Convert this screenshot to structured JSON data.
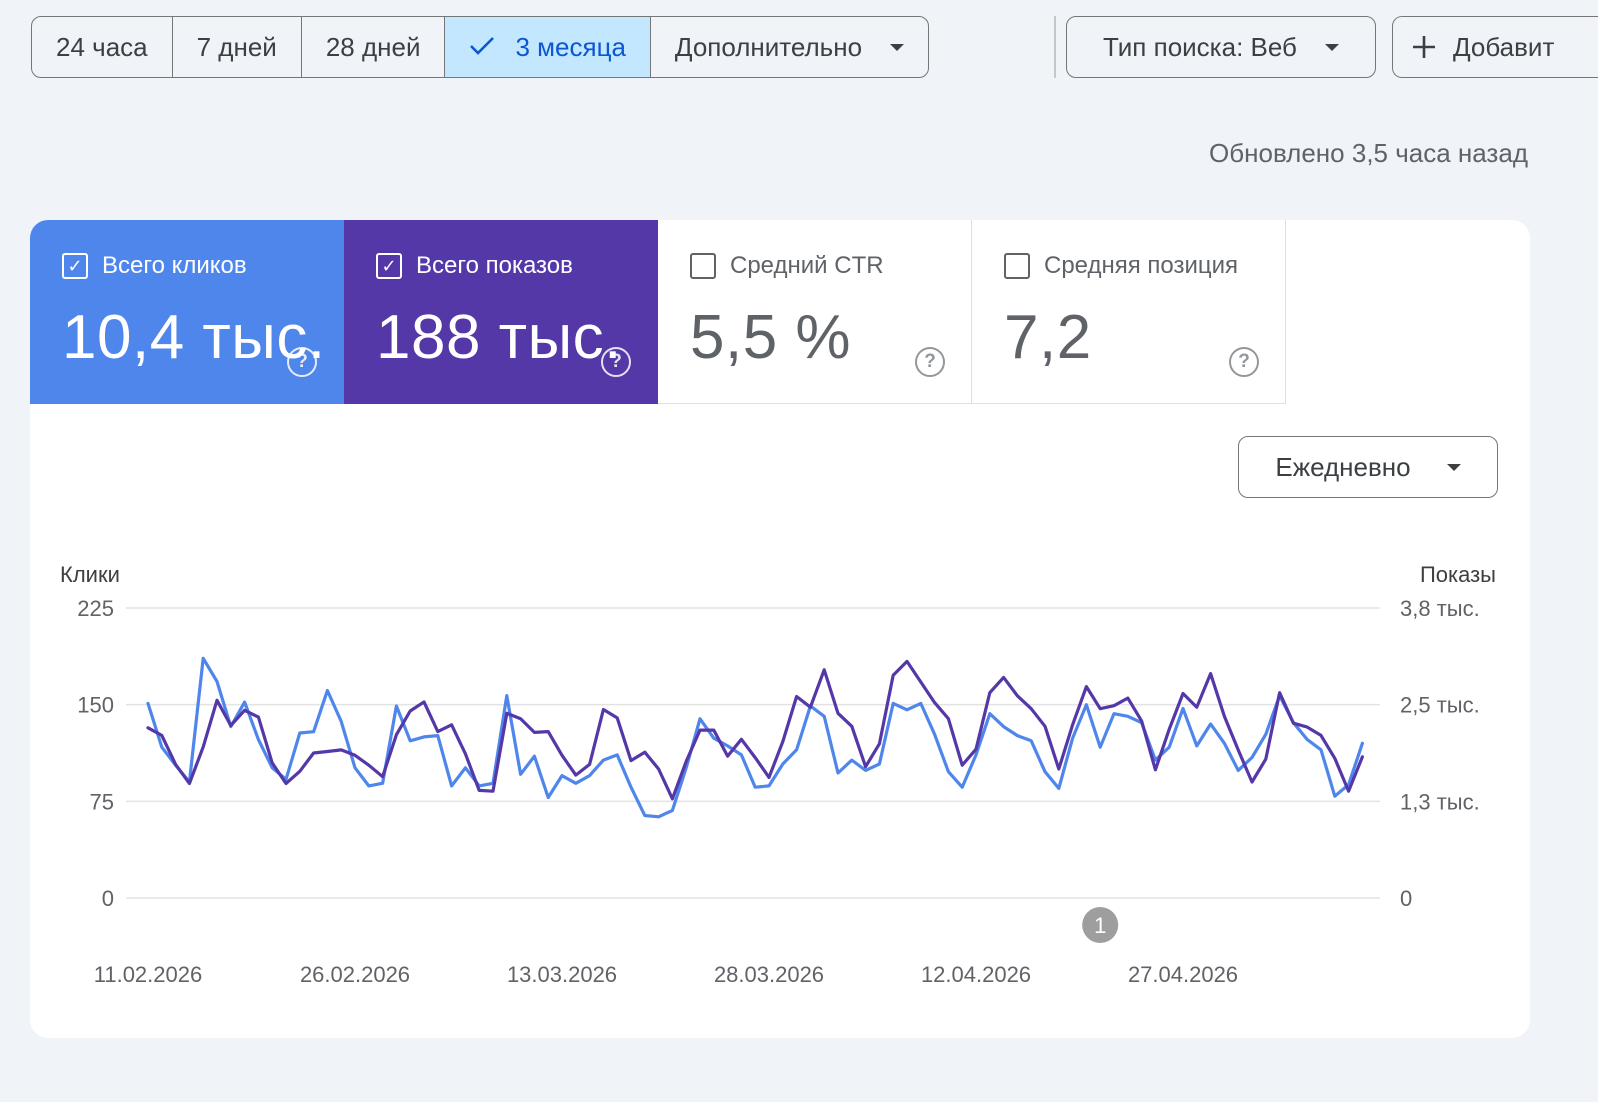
{
  "toolbar": {
    "ranges": [
      {
        "label": "24 часа",
        "selected": false
      },
      {
        "label": "7 дней",
        "selected": false
      },
      {
        "label": "28 дней",
        "selected": false
      },
      {
        "label": "3 месяца",
        "selected": true
      },
      {
        "label": "Дополнительно",
        "selected": false,
        "has_dropdown": true
      }
    ],
    "search_type_label": "Тип поиска: Веб",
    "add_filter_label": "Добавит"
  },
  "updated_text": "Обновлено 3,5 часа назад",
  "metrics": {
    "clicks": {
      "label": "Всего кликов",
      "value": "10,4 тыс.",
      "checked": true,
      "color": "#4f86ec"
    },
    "impressions": {
      "label": "Всего показов",
      "value": "188 тыс.",
      "checked": true,
      "color": "#5538a8"
    },
    "ctr": {
      "label": "Средний CTR",
      "value": "5,5 %",
      "checked": false
    },
    "position": {
      "label": "Средняя позиция",
      "value": "7,2",
      "checked": false
    }
  },
  "period_dropdown": {
    "label": "Ежедневно"
  },
  "chart_data": {
    "type": "line",
    "left_axis": {
      "title": "Клики",
      "ticks": [
        "225",
        "150",
        "75",
        "0"
      ],
      "range": [
        0,
        225
      ]
    },
    "right_axis": {
      "title": "Показы",
      "ticks": [
        "3,8 тыс.",
        "2,5 тыс.",
        "1,3 тыс.",
        "0"
      ],
      "range": [
        0,
        3800
      ]
    },
    "x_tick_labels": [
      "11.02.2026",
      "26.02.2026",
      "13.03.2026",
      "28.03.2026",
      "12.04.2026",
      "27.04.2026"
    ],
    "x_tick_day_index": [
      0,
      15,
      30,
      45,
      60,
      75
    ],
    "annotation": {
      "label": "1",
      "day_index": 69
    },
    "series": [
      {
        "name": "Всего кликов",
        "axis": "left",
        "color": "#4f86ec",
        "values": [
          151,
          117,
          103,
          90,
          186,
          168,
          133,
          152,
          123,
          101,
          92,
          128,
          129,
          161,
          137,
          101,
          87,
          89,
          149,
          122,
          125,
          126,
          87,
          101,
          87,
          89,
          157,
          96,
          110,
          78,
          95,
          89,
          95,
          107,
          111,
          86,
          64,
          63,
          68,
          101,
          139,
          124,
          118,
          111,
          86,
          87,
          104,
          115,
          149,
          141,
          97,
          107,
          99,
          104,
          151,
          146,
          151,
          127,
          98,
          86,
          111,
          143,
          133,
          126,
          122,
          98,
          85,
          124,
          150,
          117,
          143,
          141,
          136,
          107,
          117,
          147,
          118,
          135,
          120,
          99,
          109,
          127,
          157,
          136,
          123,
          115,
          79,
          88,
          120
        ],
        "tracked_from": 0
      },
      {
        "name": "Всего показов",
        "axis": "right",
        "color": "#5538a8",
        "values": [
          2230,
          2130,
          1750,
          1500,
          1980,
          2590,
          2260,
          2460,
          2370,
          1770,
          1500,
          1660,
          1900,
          1920,
          1940,
          1870,
          1740,
          1590,
          2140,
          2450,
          2570,
          2180,
          2270,
          1890,
          1410,
          1400,
          2420,
          2350,
          2170,
          2180,
          1870,
          1610,
          1750,
          2470,
          2360,
          1800,
          1910,
          1690,
          1300,
          1790,
          2200,
          2200,
          1860,
          2080,
          1840,
          1580,
          2050,
          2640,
          2500,
          2990,
          2420,
          2250,
          1720,
          2020,
          2920,
          3100,
          2830,
          2560,
          2350,
          1740,
          1950,
          2690,
          2890,
          2650,
          2480,
          2250,
          1690,
          2270,
          2770,
          2480,
          2520,
          2620,
          2320,
          1680,
          2210,
          2680,
          2500,
          2940,
          2380,
          1940,
          1520,
          1820,
          2690,
          2290,
          2240,
          2130,
          1830,
          1400,
          1850
        ]
      }
    ]
  }
}
